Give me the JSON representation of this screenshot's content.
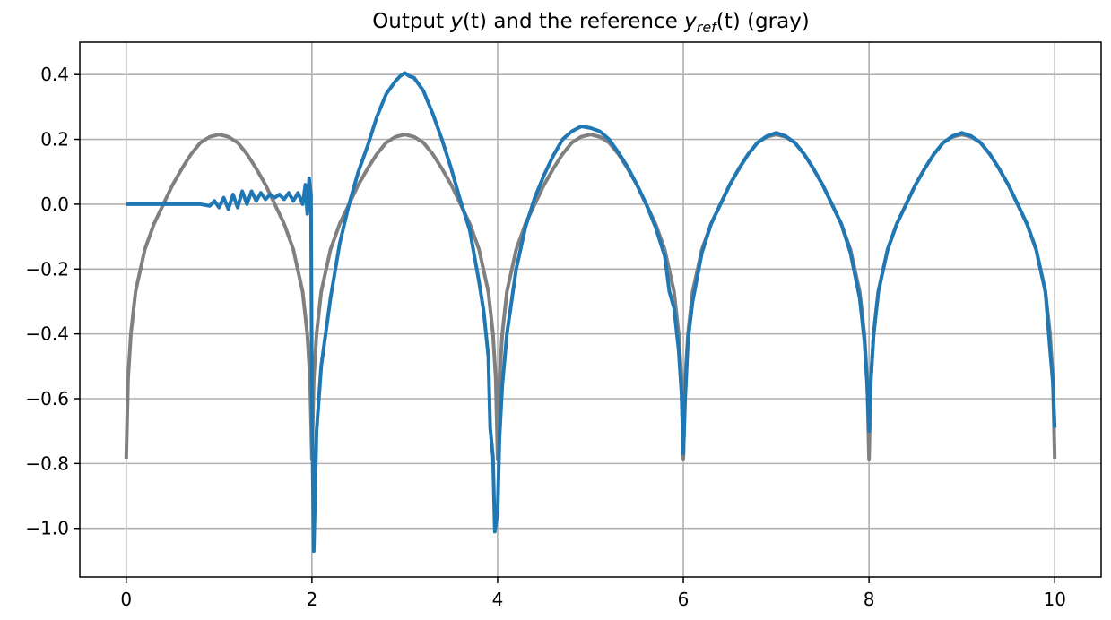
{
  "chart_data": {
    "type": "line",
    "title": {
      "prefix": "Output ",
      "y_var": "y",
      "y_args": "(t)",
      "middle": " and the reference ",
      "yref_var": "y",
      "yref_sub": "ref",
      "yref_args": "(t)",
      "suffix": " (gray)"
    },
    "xlabel": "",
    "ylabel": "",
    "xlim": [
      -0.5,
      10.5
    ],
    "ylim": [
      -1.15,
      0.5
    ],
    "xticks": [
      0,
      2,
      4,
      6,
      8,
      10
    ],
    "xtick_labels": [
      "0",
      "2",
      "4",
      "6",
      "8",
      "10"
    ],
    "yticks": [
      0.4,
      0.2,
      0.0,
      -0.2,
      -0.4,
      -0.6,
      -0.8,
      -1.0
    ],
    "ytick_labels": [
      "0.4",
      "0.2",
      "0.0",
      "−0.2",
      "−0.4",
      "−0.6",
      "−0.8",
      "−1.0"
    ],
    "grid": true,
    "legend": "none",
    "series": [
      {
        "color": "#808080",
        "points": [
          [
            0,
            -0.785
          ],
          [
            0.02,
            -0.54
          ],
          [
            0.05,
            -0.4
          ],
          [
            0.1,
            -0.27
          ],
          [
            0.2,
            -0.14
          ],
          [
            0.3,
            -0.06
          ],
          [
            0.4,
            0.0
          ],
          [
            0.5,
            0.06
          ],
          [
            0.6,
            0.11
          ],
          [
            0.7,
            0.155
          ],
          [
            0.8,
            0.19
          ],
          [
            0.9,
            0.208
          ],
          [
            1.0,
            0.215
          ],
          [
            1.1,
            0.208
          ],
          [
            1.2,
            0.19
          ],
          [
            1.3,
            0.155
          ],
          [
            1.4,
            0.11
          ],
          [
            1.5,
            0.06
          ],
          [
            1.6,
            0.0
          ],
          [
            1.7,
            -0.06
          ],
          [
            1.8,
            -0.14
          ],
          [
            1.9,
            -0.27
          ],
          [
            1.95,
            -0.4
          ],
          [
            1.98,
            -0.54
          ],
          [
            2.0,
            -0.785
          ],
          [
            2.02,
            -0.54
          ],
          [
            2.05,
            -0.4
          ],
          [
            2.1,
            -0.27
          ],
          [
            2.2,
            -0.14
          ],
          [
            2.3,
            -0.06
          ],
          [
            2.4,
            0.0
          ],
          [
            2.5,
            0.06
          ],
          [
            2.6,
            0.11
          ],
          [
            2.7,
            0.155
          ],
          [
            2.8,
            0.19
          ],
          [
            2.9,
            0.208
          ],
          [
            3.0,
            0.215
          ],
          [
            3.1,
            0.208
          ],
          [
            3.2,
            0.19
          ],
          [
            3.3,
            0.155
          ],
          [
            3.4,
            0.11
          ],
          [
            3.5,
            0.06
          ],
          [
            3.6,
            0.0
          ],
          [
            3.7,
            -0.06
          ],
          [
            3.8,
            -0.14
          ],
          [
            3.9,
            -0.27
          ],
          [
            3.95,
            -0.4
          ],
          [
            3.98,
            -0.54
          ],
          [
            4.0,
            -0.785
          ],
          [
            4.02,
            -0.54
          ],
          [
            4.05,
            -0.4
          ],
          [
            4.1,
            -0.27
          ],
          [
            4.2,
            -0.14
          ],
          [
            4.3,
            -0.06
          ],
          [
            4.4,
            0.0
          ],
          [
            4.5,
            0.06
          ],
          [
            4.6,
            0.11
          ],
          [
            4.7,
            0.155
          ],
          [
            4.8,
            0.19
          ],
          [
            4.9,
            0.208
          ],
          [
            5.0,
            0.215
          ],
          [
            5.1,
            0.208
          ],
          [
            5.2,
            0.19
          ],
          [
            5.3,
            0.155
          ],
          [
            5.4,
            0.11
          ],
          [
            5.5,
            0.06
          ],
          [
            5.6,
            0.0
          ],
          [
            5.7,
            -0.06
          ],
          [
            5.8,
            -0.14
          ],
          [
            5.9,
            -0.27
          ],
          [
            5.95,
            -0.4
          ],
          [
            5.98,
            -0.54
          ],
          [
            6.0,
            -0.785
          ],
          [
            6.02,
            -0.54
          ],
          [
            6.05,
            -0.4
          ],
          [
            6.1,
            -0.27
          ],
          [
            6.2,
            -0.14
          ],
          [
            6.3,
            -0.06
          ],
          [
            6.4,
            0.0
          ],
          [
            6.5,
            0.06
          ],
          [
            6.6,
            0.11
          ],
          [
            6.7,
            0.155
          ],
          [
            6.8,
            0.19
          ],
          [
            6.9,
            0.208
          ],
          [
            7.0,
            0.215
          ],
          [
            7.1,
            0.208
          ],
          [
            7.2,
            0.19
          ],
          [
            7.3,
            0.155
          ],
          [
            7.4,
            0.11
          ],
          [
            7.5,
            0.06
          ],
          [
            7.6,
            0.0
          ],
          [
            7.7,
            -0.06
          ],
          [
            7.8,
            -0.14
          ],
          [
            7.9,
            -0.27
          ],
          [
            7.95,
            -0.4
          ],
          [
            7.98,
            -0.54
          ],
          [
            8.0,
            -0.785
          ],
          [
            8.02,
            -0.54
          ],
          [
            8.05,
            -0.4
          ],
          [
            8.1,
            -0.27
          ],
          [
            8.2,
            -0.14
          ],
          [
            8.3,
            -0.06
          ],
          [
            8.4,
            0.0
          ],
          [
            8.5,
            0.06
          ],
          [
            8.6,
            0.11
          ],
          [
            8.7,
            0.155
          ],
          [
            8.8,
            0.19
          ],
          [
            8.9,
            0.208
          ],
          [
            9.0,
            0.215
          ],
          [
            9.1,
            0.208
          ],
          [
            9.2,
            0.19
          ],
          [
            9.3,
            0.155
          ],
          [
            9.4,
            0.11
          ],
          [
            9.5,
            0.06
          ],
          [
            9.6,
            0.0
          ],
          [
            9.7,
            -0.06
          ],
          [
            9.8,
            -0.14
          ],
          [
            9.9,
            -0.27
          ],
          [
            9.95,
            -0.4
          ],
          [
            9.98,
            -0.54
          ],
          [
            10.0,
            -0.785
          ]
        ]
      },
      {
        "color": "#1f77b4",
        "points": [
          [
            0,
            0.0
          ],
          [
            0.5,
            0.0
          ],
          [
            0.8,
            0.0
          ],
          [
            0.9,
            -0.005
          ],
          [
            0.95,
            0.01
          ],
          [
            1.0,
            -0.01
          ],
          [
            1.05,
            0.02
          ],
          [
            1.1,
            -0.015
          ],
          [
            1.15,
            0.03
          ],
          [
            1.2,
            -0.01
          ],
          [
            1.25,
            0.04
          ],
          [
            1.3,
            0.0
          ],
          [
            1.35,
            0.04
          ],
          [
            1.4,
            0.01
          ],
          [
            1.45,
            0.035
          ],
          [
            1.5,
            0.015
          ],
          [
            1.55,
            0.03
          ],
          [
            1.6,
            0.02
          ],
          [
            1.65,
            0.03
          ],
          [
            1.7,
            0.015
          ],
          [
            1.75,
            0.035
          ],
          [
            1.8,
            0.01
          ],
          [
            1.85,
            0.035
          ],
          [
            1.9,
            0.0
          ],
          [
            1.93,
            0.06
          ],
          [
            1.95,
            -0.03
          ],
          [
            1.97,
            0.08
          ],
          [
            1.99,
            0.03
          ],
          [
            2.0,
            -0.6
          ],
          [
            2.01,
            -0.85
          ],
          [
            2.02,
            -1.07
          ],
          [
            2.03,
            -0.95
          ],
          [
            2.05,
            -0.7
          ],
          [
            2.1,
            -0.5
          ],
          [
            2.2,
            -0.29
          ],
          [
            2.3,
            -0.12
          ],
          [
            2.4,
            0.0
          ],
          [
            2.5,
            0.1
          ],
          [
            2.6,
            0.18
          ],
          [
            2.7,
            0.27
          ],
          [
            2.8,
            0.34
          ],
          [
            2.9,
            0.38
          ],
          [
            2.95,
            0.395
          ],
          [
            3.0,
            0.405
          ],
          [
            3.05,
            0.395
          ],
          [
            3.1,
            0.39
          ],
          [
            3.2,
            0.35
          ],
          [
            3.3,
            0.28
          ],
          [
            3.4,
            0.2
          ],
          [
            3.5,
            0.11
          ],
          [
            3.6,
            0.01
          ],
          [
            3.7,
            -0.08
          ],
          [
            3.75,
            -0.16
          ],
          [
            3.8,
            -0.24
          ],
          [
            3.85,
            -0.33
          ],
          [
            3.9,
            -0.47
          ],
          [
            3.92,
            -0.69
          ],
          [
            3.95,
            -0.78
          ],
          [
            3.97,
            -1.01
          ],
          [
            4.0,
            -0.95
          ],
          [
            4.02,
            -0.72
          ],
          [
            4.05,
            -0.56
          ],
          [
            4.1,
            -0.4
          ],
          [
            4.2,
            -0.2
          ],
          [
            4.3,
            -0.07
          ],
          [
            4.4,
            0.02
          ],
          [
            4.5,
            0.09
          ],
          [
            4.6,
            0.15
          ],
          [
            4.7,
            0.2
          ],
          [
            4.8,
            0.225
          ],
          [
            4.9,
            0.24
          ],
          [
            5.0,
            0.235
          ],
          [
            5.1,
            0.225
          ],
          [
            5.2,
            0.2
          ],
          [
            5.3,
            0.16
          ],
          [
            5.4,
            0.115
          ],
          [
            5.5,
            0.06
          ],
          [
            5.6,
            0.0
          ],
          [
            5.7,
            -0.07
          ],
          [
            5.8,
            -0.16
          ],
          [
            5.85,
            -0.27
          ],
          [
            5.9,
            -0.32
          ],
          [
            5.95,
            -0.45
          ],
          [
            5.98,
            -0.58
          ],
          [
            6.0,
            -0.77
          ],
          [
            6.02,
            -0.6
          ],
          [
            6.05,
            -0.42
          ],
          [
            6.1,
            -0.3
          ],
          [
            6.2,
            -0.15
          ],
          [
            6.3,
            -0.06
          ],
          [
            6.4,
            0.0
          ],
          [
            6.5,
            0.06
          ],
          [
            6.6,
            0.11
          ],
          [
            6.7,
            0.155
          ],
          [
            6.8,
            0.19
          ],
          [
            6.9,
            0.21
          ],
          [
            7.0,
            0.22
          ],
          [
            7.1,
            0.21
          ],
          [
            7.2,
            0.19
          ],
          [
            7.3,
            0.155
          ],
          [
            7.4,
            0.11
          ],
          [
            7.5,
            0.06
          ],
          [
            7.6,
            0.0
          ],
          [
            7.7,
            -0.06
          ],
          [
            7.8,
            -0.15
          ],
          [
            7.9,
            -0.29
          ],
          [
            7.95,
            -0.42
          ],
          [
            7.98,
            -0.56
          ],
          [
            8.0,
            -0.7
          ],
          [
            8.02,
            -0.54
          ],
          [
            8.05,
            -0.4
          ],
          [
            8.1,
            -0.27
          ],
          [
            8.2,
            -0.14
          ],
          [
            8.3,
            -0.06
          ],
          [
            8.4,
            0.0
          ],
          [
            8.5,
            0.06
          ],
          [
            8.6,
            0.11
          ],
          [
            8.7,
            0.155
          ],
          [
            8.8,
            0.19
          ],
          [
            8.9,
            0.21
          ],
          [
            9.0,
            0.22
          ],
          [
            9.1,
            0.21
          ],
          [
            9.2,
            0.19
          ],
          [
            9.3,
            0.155
          ],
          [
            9.4,
            0.11
          ],
          [
            9.5,
            0.06
          ],
          [
            9.6,
            0.0
          ],
          [
            9.7,
            -0.06
          ],
          [
            9.8,
            -0.14
          ],
          [
            9.9,
            -0.27
          ],
          [
            9.95,
            -0.45
          ],
          [
            9.98,
            -0.55
          ],
          [
            10.0,
            -0.69
          ]
        ]
      }
    ]
  }
}
